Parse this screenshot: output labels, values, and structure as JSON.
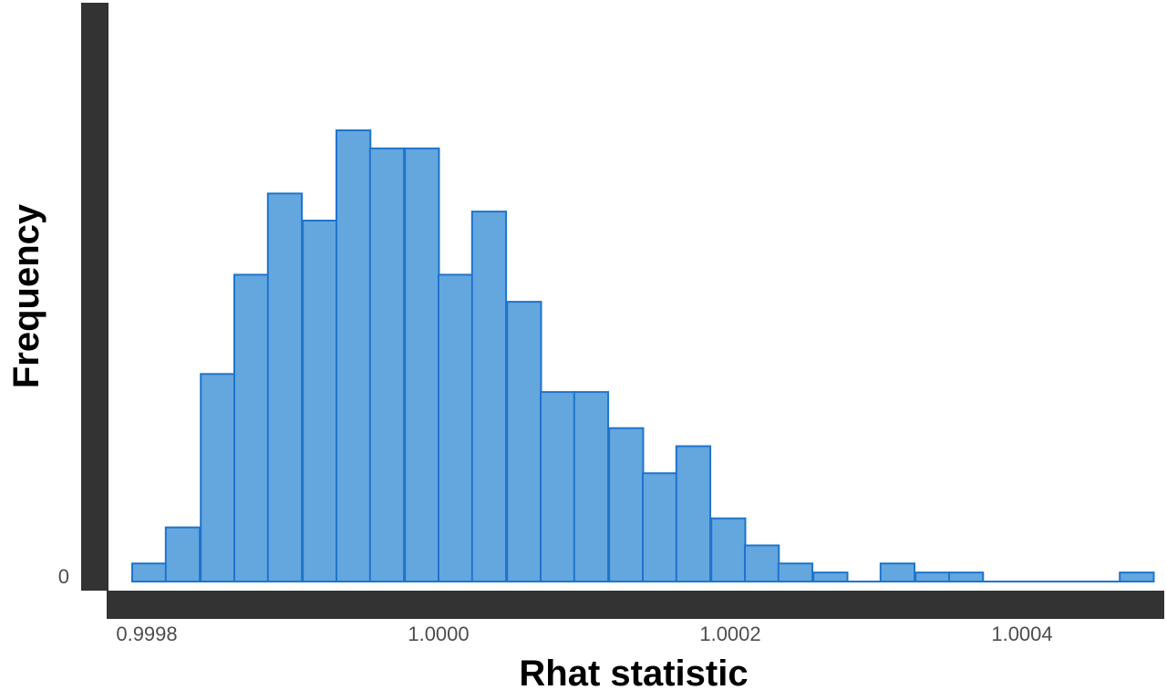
{
  "chart_data": {
    "type": "bar",
    "title": "",
    "xlabel": "Rhat statistic",
    "ylabel": "Frequency",
    "x_tick_labels": [
      "0.9998",
      "1.0000",
      "1.0002",
      "1.0004"
    ],
    "x_ticks": [
      0.9998,
      1.0,
      1.0002,
      1.0004
    ],
    "y_tick_labels": [
      "0"
    ],
    "y_ticks": [
      0
    ],
    "xlim": [
      0.99977,
      1.00049
    ],
    "ylim": [
      0,
      50
    ],
    "bin_width": 2.33e-05,
    "bin_starts": [
      0.99979,
      0.999813,
      0.999837,
      0.99986,
      0.999883,
      0.999907,
      0.99993,
      0.999953,
      0.999977,
      1.0,
      1.000023,
      1.000047,
      1.00007,
      1.000093,
      1.000117,
      1.00014,
      1.000163,
      1.000187,
      1.00021,
      1.000233,
      1.000257,
      1.00028,
      1.000303,
      1.000327,
      1.00035,
      1.000373,
      1.000397,
      1.00042,
      1.000443,
      1.000467
    ],
    "values": [
      2,
      6,
      23,
      34,
      43,
      40,
      50,
      48,
      48,
      34,
      41,
      31,
      21,
      21,
      17,
      12,
      15,
      7,
      4,
      2,
      1,
      0,
      2,
      1,
      1,
      0,
      0,
      0,
      0,
      1
    ],
    "grid": false,
    "legend": "none",
    "colors": {
      "fill": "#64a6de",
      "stroke": "#1e74cc",
      "axis": "#333333"
    }
  }
}
